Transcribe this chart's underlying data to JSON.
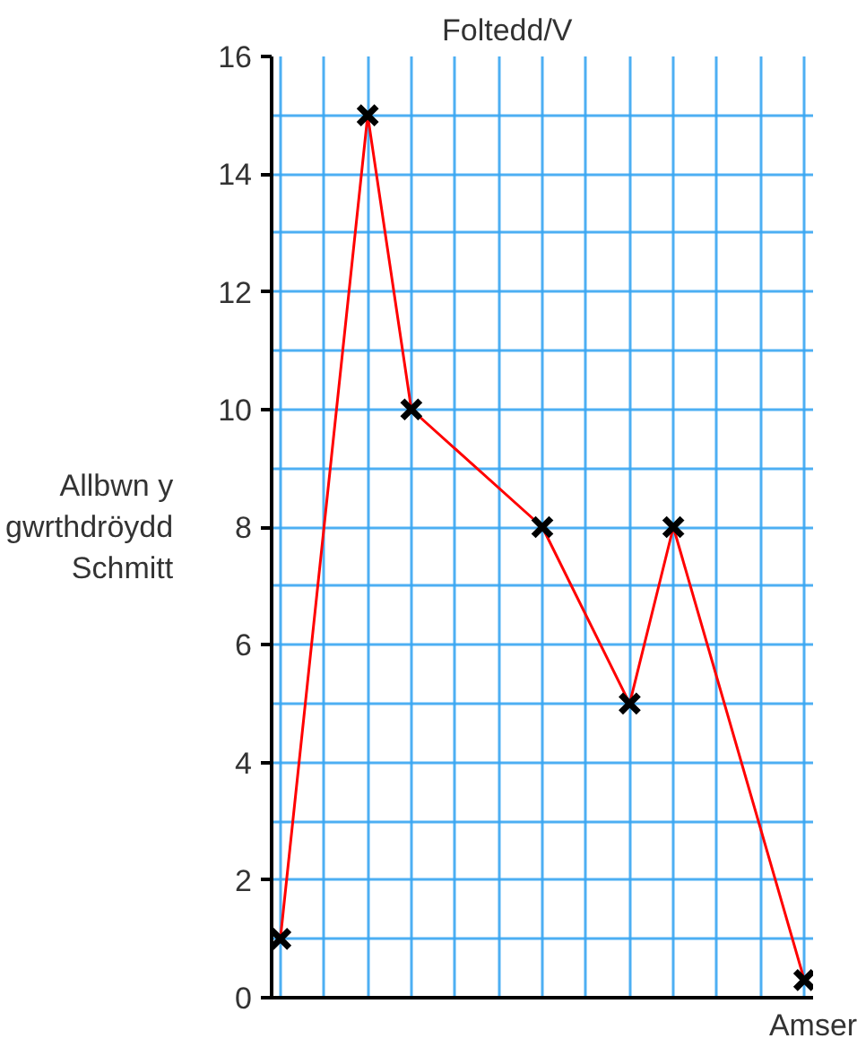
{
  "chart_data": {
    "type": "line",
    "ylabel": "Foltedd/V",
    "xlabel": "Amser",
    "annotations": [
      "Allbwn y gwrthdröydd Schmitt"
    ],
    "categories": [
      null,
      null,
      null,
      null,
      null,
      null,
      null,
      null,
      null,
      null,
      null,
      null,
      null
    ],
    "series": [
      {
        "color": "#ff0000",
        "values": [
          1,
          null,
          15,
          10,
          null,
          null,
          8,
          null,
          5,
          8,
          null,
          null,
          0.3
        ]
      }
    ],
    "ylim": [
      0,
      16
    ],
    "yticks": [
      0,
      {
        "value": 1,
        "label": null
      },
      2,
      {
        "value": 3,
        "label": null
      },
      4,
      {
        "value": 5,
        "label": null
      },
      6,
      {
        "value": 7,
        "label": null
      },
      8,
      {
        "value": 9,
        "label": null
      },
      10,
      {
        "value": 11,
        "label": null
      },
      12,
      {
        "value": 13,
        "label": null
      },
      14,
      {
        "value": 15,
        "label": null
      },
      16
    ],
    "grid": true,
    "marker": "cross",
    "line_style": "solid"
  }
}
